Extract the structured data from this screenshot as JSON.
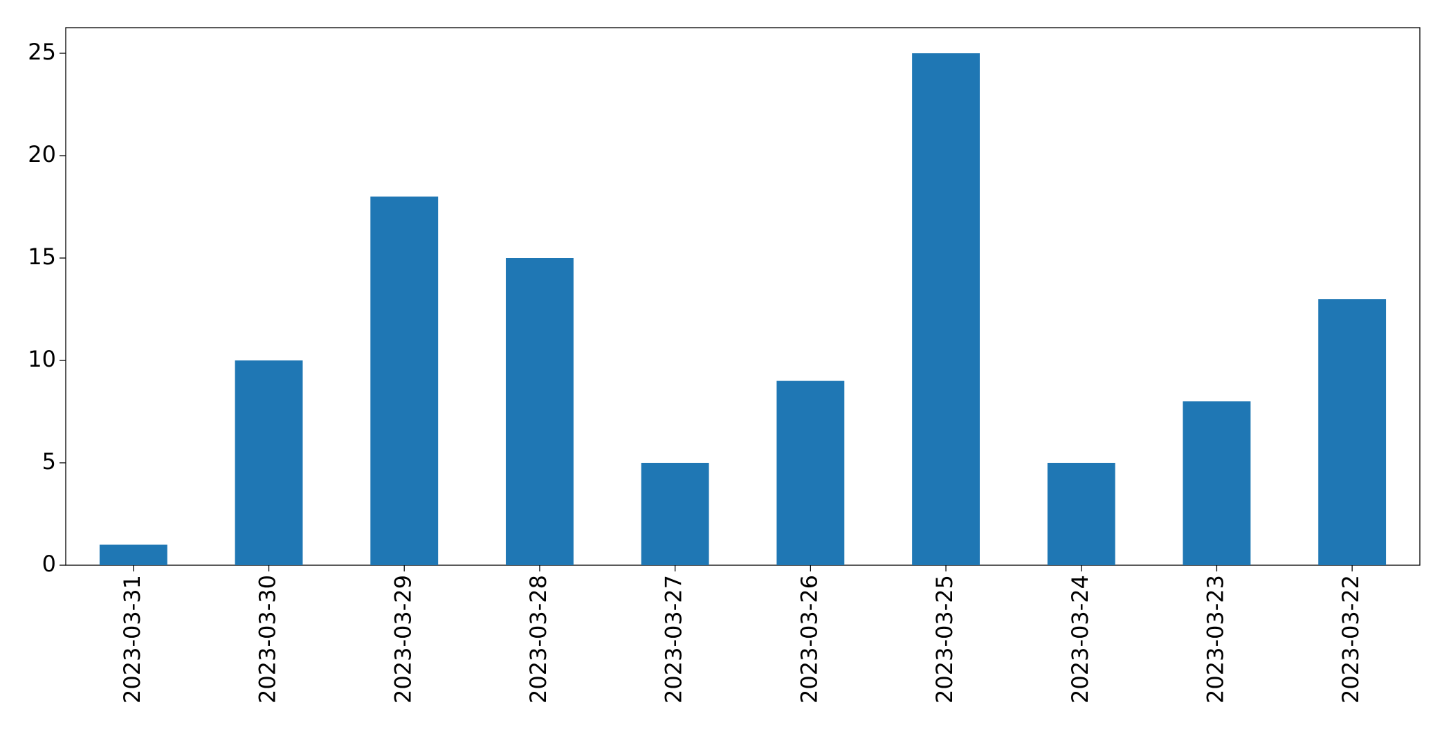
{
  "chart_data": {
    "type": "bar",
    "categories": [
      "2023-03-31",
      "2023-03-30",
      "2023-03-29",
      "2023-03-28",
      "2023-03-27",
      "2023-03-26",
      "2023-03-25",
      "2023-03-24",
      "2023-03-23",
      "2023-03-22"
    ],
    "values": [
      1,
      10,
      18,
      15,
      5,
      9,
      25,
      5,
      8,
      13
    ],
    "color": "#1f77b4",
    "ylim": [
      0,
      26.25
    ],
    "yticks": [
      0,
      5,
      10,
      15,
      20,
      25
    ],
    "grid": false
  }
}
